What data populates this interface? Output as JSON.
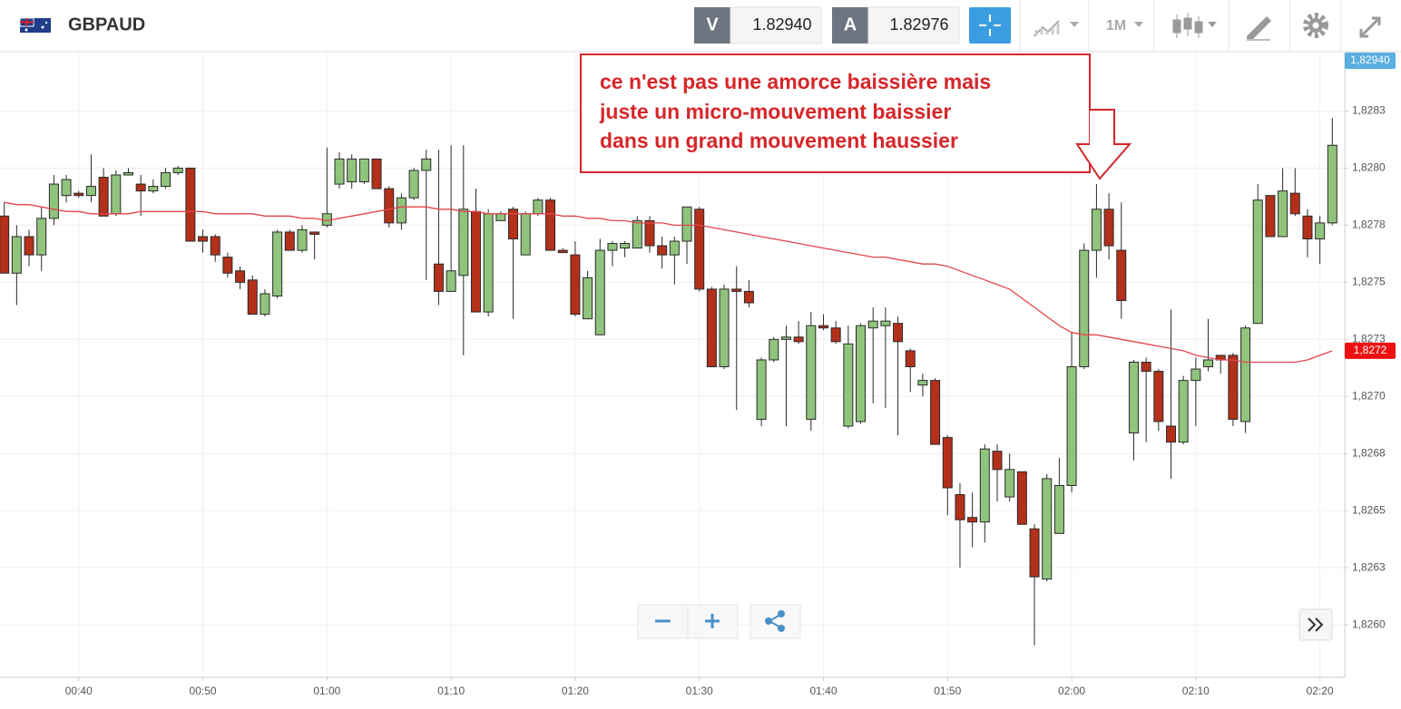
{
  "toolbar": {
    "bid_label": "V",
    "bid": "1.82940",
    "ask_label": "A",
    "ask": "1.82976",
    "timeframe": "1M"
  },
  "chart_data": {
    "type": "candlestick",
    "title": "GBPAUD",
    "up_color": "#90c47c",
    "down_color": "#b3301b",
    "grid": true,
    "x": [
      "00:34",
      "00:35",
      "00:36",
      "00:37",
      "00:38",
      "00:39",
      "00:40",
      "00:41",
      "00:42",
      "00:43",
      "00:44",
      "00:45",
      "00:46",
      "00:47",
      "00:48",
      "00:49",
      "00:50",
      "00:51",
      "00:52",
      "00:53",
      "00:54",
      "00:55",
      "00:56",
      "00:57",
      "00:58",
      "00:59",
      "01:00",
      "01:01",
      "01:02",
      "01:03",
      "01:04",
      "01:05",
      "01:06",
      "01:07",
      "01:08",
      "01:09",
      "01:10",
      "01:11",
      "01:12",
      "01:13",
      "01:14",
      "01:15",
      "01:16",
      "01:17",
      "01:18",
      "01:19",
      "01:20",
      "01:21",
      "01:22",
      "01:23",
      "01:24",
      "01:25",
      "01:26",
      "01:27",
      "01:28",
      "01:29",
      "01:30",
      "01:31",
      "01:32",
      "01:33",
      "01:34",
      "01:35",
      "01:36",
      "01:37",
      "01:38",
      "01:39",
      "01:40",
      "01:41",
      "01:42",
      "01:43",
      "01:44",
      "01:45",
      "01:46",
      "01:47",
      "01:48",
      "01:49",
      "01:50",
      "01:51",
      "01:52",
      "01:53",
      "01:54",
      "01:55",
      "01:56",
      "01:57",
      "01:58",
      "01:59",
      "02:00",
      "02:01",
      "02:02",
      "02:03",
      "02:04",
      "02:05",
      "02:06",
      "02:07",
      "02:08",
      "02:09",
      "02:10",
      "02:11",
      "02:12",
      "02:13",
      "02:14",
      "02:15",
      "02:16",
      "02:17",
      "02:18",
      "02:19",
      "02:20",
      "02:21"
    ],
    "open": [
      1.82779,
      1.82754,
      1.8277,
      1.82762,
      1.82778,
      1.82788,
      1.82789,
      1.82788,
      1.82796,
      1.8278,
      1.82797,
      1.82793,
      1.8279,
      1.82792,
      1.82798,
      1.828,
      1.8277,
      1.8277,
      1.82761,
      1.82755,
      1.82751,
      1.82736,
      1.82744,
      1.82772,
      1.82764,
      1.82772,
      1.82775,
      1.82793,
      1.82794,
      1.82794,
      1.82804,
      1.82791,
      1.82776,
      1.82787,
      1.82799,
      1.82758,
      1.82746,
      1.82753,
      1.82781,
      1.82737,
      1.82777,
      1.82782,
      1.82762,
      1.8278,
      1.82786,
      1.82764,
      1.82762,
      1.82734,
      1.82727,
      1.82764,
      1.82765,
      1.82765,
      1.82777,
      1.82766,
      1.82762,
      1.82768,
      1.82782,
      1.82747,
      1.82713,
      1.82747,
      1.82746,
      1.8269,
      1.82716,
      1.82725,
      1.82726,
      1.8269,
      1.82731,
      1.8273,
      1.82687,
      1.82689,
      1.8273,
      1.82731,
      1.82732,
      1.8272,
      1.82705,
      1.82707,
      1.82682,
      1.82657,
      1.82647,
      1.82645,
      1.82676,
      1.82656,
      1.82667,
      1.82642,
      1.8262,
      1.8264,
      1.82661,
      1.82713,
      1.82764,
      1.82782,
      1.82764,
      1.82684,
      1.82715,
      1.82711,
      1.82687,
      1.8268,
      1.82707,
      1.82713,
      1.82718,
      1.82718,
      1.82689,
      1.82732,
      1.82788,
      1.8277,
      1.82789,
      1.82779,
      1.82769,
      1.82776
    ],
    "high": [
      1.82785,
      1.82775,
      1.82773,
      1.82783,
      1.82797,
      1.82797,
      1.8279,
      1.82806,
      1.828,
      1.82799,
      1.828,
      1.82797,
      1.82795,
      1.828,
      1.82801,
      1.828,
      1.82773,
      1.82771,
      1.82763,
      1.82757,
      1.82753,
      1.82747,
      1.82773,
      1.82773,
      1.82775,
      1.82772,
      1.82809,
      1.82807,
      1.82806,
      1.82804,
      1.82804,
      1.82792,
      1.82789,
      1.828,
      1.82808,
      1.82808,
      1.8281,
      1.8281,
      1.82791,
      1.82782,
      1.82781,
      1.82783,
      1.82781,
      1.82787,
      1.82787,
      1.82765,
      1.82768,
      1.82755,
      1.82769,
      1.82768,
      1.82768,
      1.82779,
      1.82779,
      1.8277,
      1.8277,
      1.82783,
      1.82783,
      1.82748,
      1.82749,
      1.82757,
      1.82751,
      1.82717,
      1.82726,
      1.82731,
      1.82733,
      1.82737,
      1.82736,
      1.82733,
      1.82731,
      1.82732,
      1.82739,
      1.82739,
      1.82735,
      1.82721,
      1.8271,
      1.82708,
      1.82683,
      1.82662,
      1.82658,
      1.82679,
      1.82679,
      1.82675,
      1.82667,
      1.82644,
      1.82666,
      1.82673,
      1.82728,
      1.82767,
      1.82793,
      1.82789,
      1.82785,
      1.82716,
      1.82717,
      1.82712,
      1.82738,
      1.82709,
      1.82717,
      1.82734,
      1.82718,
      1.82719,
      1.82731,
      1.82793,
      1.82788,
      1.828,
      1.828,
      1.82782,
      1.82779,
      1.82822
    ],
    "low": [
      1.82754,
      1.8274,
      1.82757,
      1.82755,
      1.82775,
      1.82785,
      1.82787,
      1.82785,
      1.82779,
      1.82779,
      1.82797,
      1.82779,
      1.82789,
      1.82791,
      1.82797,
      1.82768,
      1.82763,
      1.82759,
      1.82752,
      1.82747,
      1.82736,
      1.82735,
      1.82743,
      1.82764,
      1.82763,
      1.8276,
      1.82774,
      1.82791,
      1.82791,
      1.82793,
      1.82791,
      1.82774,
      1.82773,
      1.82786,
      1.82751,
      1.8274,
      1.82746,
      1.82718,
      1.82737,
      1.82735,
      1.82777,
      1.82734,
      1.82762,
      1.82779,
      1.82764,
      1.82763,
      1.82735,
      1.82734,
      1.82727,
      1.82757,
      1.82761,
      1.82765,
      1.82763,
      1.82756,
      1.82749,
      1.82758,
      1.82746,
      1.82713,
      1.82712,
      1.82694,
      1.82739,
      1.82687,
      1.82715,
      1.82687,
      1.82723,
      1.82685,
      1.82729,
      1.82723,
      1.82686,
      1.82688,
      1.82697,
      1.82695,
      1.82683,
      1.82702,
      1.827,
      1.82679,
      1.82648,
      1.82625,
      1.82634,
      1.82636,
      1.82654,
      1.82654,
      1.82644,
      1.82591,
      1.82619,
      1.8264,
      1.82658,
      1.82712,
      1.82752,
      1.8276,
      1.82734,
      1.82672,
      1.8268,
      1.82685,
      1.82664,
      1.82679,
      1.82687,
      1.82711,
      1.8271,
      1.82687,
      1.82684,
      1.82732,
      1.8277,
      1.8277,
      1.82779,
      1.82761,
      1.82758,
      1.82775
    ],
    "close": [
      1.82754,
      1.8277,
      1.82762,
      1.82778,
      1.82793,
      1.82795,
      1.82788,
      1.82792,
      1.82779,
      1.82797,
      1.82798,
      1.8279,
      1.82792,
      1.82798,
      1.828,
      1.82768,
      1.82768,
      1.82762,
      1.82754,
      1.8275,
      1.82736,
      1.82745,
      1.82772,
      1.82764,
      1.82773,
      1.82771,
      1.8278,
      1.82804,
      1.82804,
      1.82804,
      1.82791,
      1.82776,
      1.82787,
      1.82799,
      1.82804,
      1.82746,
      1.82755,
      1.82782,
      1.82737,
      1.8278,
      1.8278,
      1.82769,
      1.8278,
      1.82786,
      1.82764,
      1.82763,
      1.82736,
      1.82752,
      1.82764,
      1.82767,
      1.82767,
      1.82777,
      1.82766,
      1.82762,
      1.82768,
      1.82783,
      1.82747,
      1.82713,
      1.82747,
      1.82746,
      1.82741,
      1.82716,
      1.82725,
      1.82726,
      1.82724,
      1.82731,
      1.8273,
      1.82724,
      1.82723,
      1.82731,
      1.82733,
      1.82733,
      1.82724,
      1.82713,
      1.82707,
      1.82679,
      1.8266,
      1.82646,
      1.82645,
      1.82677,
      1.82668,
      1.82668,
      1.82644,
      1.82621,
      1.82664,
      1.82661,
      1.82713,
      1.82764,
      1.82782,
      1.82766,
      1.82742,
      1.82715,
      1.82711,
      1.82689,
      1.8268,
      1.82707,
      1.82712,
      1.82716,
      1.82716,
      1.8269,
      1.8273,
      1.82786,
      1.8277,
      1.8279,
      1.8278,
      1.82769,
      1.82776,
      1.8281
    ],
    "overlays": [
      {
        "type": "line",
        "color": "#e2464a",
        "values": [
          1.82785,
          1.82784,
          1.82784,
          1.82783,
          1.82782,
          1.82781,
          1.82781,
          1.8278,
          1.8278,
          1.8278,
          1.8278,
          1.82781,
          1.82781,
          1.82781,
          1.82781,
          1.82781,
          1.82781,
          1.8278,
          1.8278,
          1.8278,
          1.8278,
          1.82779,
          1.82779,
          1.82779,
          1.82778,
          1.82778,
          1.82777,
          1.82778,
          1.82779,
          1.8278,
          1.82781,
          1.82782,
          1.82783,
          1.82783,
          1.82783,
          1.82782,
          1.82782,
          1.82781,
          1.82781,
          1.8278,
          1.8278,
          1.8278,
          1.8278,
          1.8278,
          1.8278,
          1.82779,
          1.82779,
          1.82778,
          1.82778,
          1.82777,
          1.82777,
          1.82776,
          1.82776,
          1.82776,
          1.82775,
          1.82775,
          1.82775,
          1.82774,
          1.82773,
          1.82772,
          1.82771,
          1.8277,
          1.82769,
          1.82768,
          1.82767,
          1.82766,
          1.82765,
          1.82764,
          1.82763,
          1.82762,
          1.82761,
          1.82761,
          1.8276,
          1.82759,
          1.82758,
          1.82758,
          1.82757,
          1.82755,
          1.82753,
          1.82751,
          1.82749,
          1.82747,
          1.82743,
          1.82739,
          1.82735,
          1.82731,
          1.82728,
          1.82727,
          1.82727,
          1.82726,
          1.82725,
          1.82724,
          1.82723,
          1.82722,
          1.82721,
          1.8272,
          1.82718,
          1.82717,
          1.82716,
          1.82716,
          1.82715,
          1.82715,
          1.82715,
          1.82715,
          1.82715,
          1.82716,
          1.82718,
          1.8272
        ]
      }
    ],
    "xlim": [
      "00:33",
      "02:22"
    ],
    "xticks": [
      "00:40",
      "00:50",
      "01:00",
      "01:10",
      "01:20",
      "01:30",
      "01:40",
      "01:50",
      "02:00",
      "02:10",
      "02:20"
    ],
    "ylim": [
      1.82577,
      1.82851
    ],
    "yticks": [
      {
        "value": 1.826,
        "label": "1,8260"
      },
      {
        "value": 1.82625,
        "label": "1,8263"
      },
      {
        "value": 1.8265,
        "label": "1,8265"
      },
      {
        "value": 1.82675,
        "label": "1,8268"
      },
      {
        "value": 1.827,
        "label": "1,8270"
      },
      {
        "value": 1.82725,
        "label": "1,8273"
      },
      {
        "value": 1.8275,
        "label": "1,8275"
      },
      {
        "value": 1.82775,
        "label": "1,8278"
      },
      {
        "value": 1.828,
        "label": "1,8280"
      },
      {
        "value": 1.82825,
        "label": "1,8283"
      }
    ],
    "price_tags": [
      {
        "value": 1.8294,
        "label": "1,82940",
        "color": "#5aaee0",
        "position": "top"
      },
      {
        "value": 1.8272,
        "label": "1,8272",
        "color": "#ee1111"
      }
    ],
    "annotation": [
      "ce n'est pas une amorce baissière mais",
      "juste un micro-mouvement baissier",
      "dans un grand mouvement haussier"
    ]
  }
}
